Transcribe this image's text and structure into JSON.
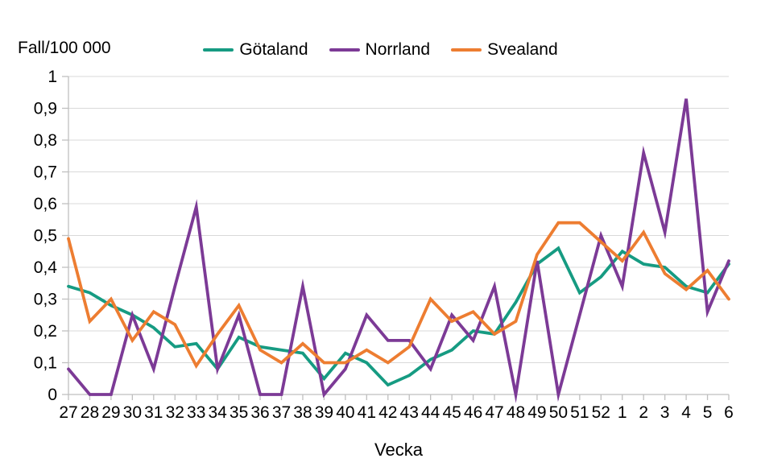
{
  "chart_data": {
    "type": "line",
    "title": "Fall/100 000",
    "xlabel": "Vecka",
    "ylabel": "",
    "ylim": [
      0,
      1
    ],
    "grid": "horizontal",
    "legend_position": "top-center",
    "axis_color": "#bfbfbf",
    "grid_color": "#d9d9d9",
    "text_color": "#000000",
    "x_tick_labels": [
      "27",
      "28",
      "29",
      "30",
      "31",
      "32",
      "33",
      "34",
      "35",
      "36",
      "37",
      "38",
      "39",
      "40",
      "41",
      "42",
      "43",
      "44",
      "45",
      "46",
      "47",
      "48",
      "49",
      "50",
      "51",
      "52",
      "1",
      "2",
      "3",
      "4",
      "5",
      "6"
    ],
    "y_ticks": [
      0,
      0.1,
      0.2,
      0.3,
      0.4,
      0.5,
      0.6,
      0.7,
      0.8,
      0.9,
      1
    ],
    "y_tick_labels": [
      "0",
      "0,1",
      "0,2",
      "0,3",
      "0,4",
      "0,5",
      "0,6",
      "0,7",
      "0,8",
      "0,9",
      "1"
    ],
    "series": [
      {
        "name": "Götaland",
        "color": "#169b82",
        "values": [
          0.34,
          0.32,
          0.28,
          0.25,
          0.21,
          0.15,
          0.16,
          0.08,
          0.18,
          0.15,
          0.14,
          0.13,
          0.05,
          0.13,
          0.1,
          0.03,
          0.06,
          0.11,
          0.14,
          0.2,
          0.19,
          0.29,
          0.41,
          0.46,
          0.32,
          0.37,
          0.45,
          0.41,
          0.4,
          0.34,
          0.32,
          0.41
        ]
      },
      {
        "name": "Norrland",
        "color": "#7c3a96",
        "values": [
          0.08,
          0,
          0,
          0.25,
          0.08,
          0.34,
          0.59,
          0.08,
          0.25,
          0,
          0,
          0.34,
          0,
          0.08,
          0.25,
          0.17,
          0.17,
          0.08,
          0.25,
          0.17,
          0.34,
          0,
          0.42,
          0,
          0.25,
          0.5,
          0.34,
          0.76,
          0.51,
          0.93,
          0.26,
          0.42
        ]
      },
      {
        "name": "Svealand",
        "color": "#ed7d31",
        "values": [
          0.49,
          0.23,
          0.3,
          0.17,
          0.26,
          0.22,
          0.09,
          0.19,
          0.28,
          0.14,
          0.1,
          0.16,
          0.1,
          0.1,
          0.14,
          0.1,
          0.15,
          0.3,
          0.23,
          0.26,
          0.19,
          0.23,
          0.44,
          0.54,
          0.54,
          0.48,
          0.42,
          0.51,
          0.38,
          0.33,
          0.39,
          0.3
        ]
      }
    ]
  }
}
